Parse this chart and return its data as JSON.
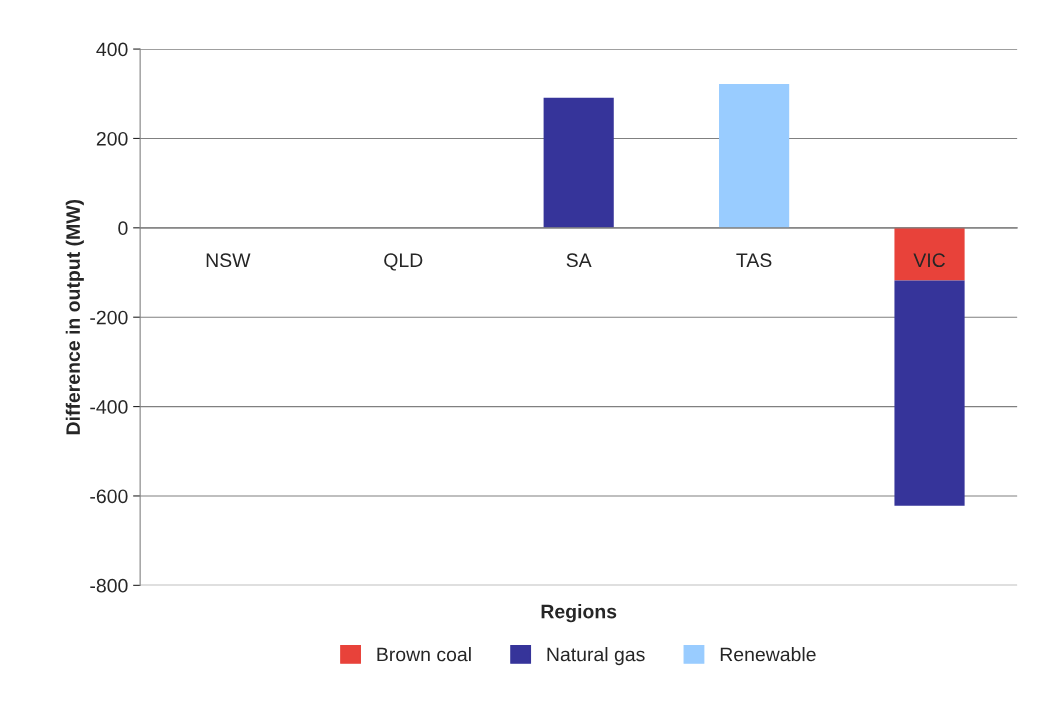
{
  "chart_data": {
    "type": "bar",
    "stacked": true,
    "xlabel": "Regions",
    "ylabel": "Difference in output (MW)",
    "categories": [
      "NSW",
      "QLD",
      "SA",
      "TAS",
      "VIC"
    ],
    "series": [
      {
        "name": "Brown coal",
        "color": "#e8423a",
        "values": [
          null,
          null,
          null,
          null,
          -118
        ]
      },
      {
        "name": "Natural gas",
        "color": "#36349a",
        "values": [
          null,
          null,
          291,
          null,
          -504
        ]
      },
      {
        "name": "Renewable",
        "color": "#99ccff",
        "values": [
          null,
          null,
          null,
          322,
          null
        ]
      }
    ],
    "ylim": [
      -800,
      400
    ],
    "yticks": [
      -800,
      -600,
      -400,
      -200,
      0,
      200,
      400
    ],
    "grid": "y",
    "legend": "bottom"
  }
}
